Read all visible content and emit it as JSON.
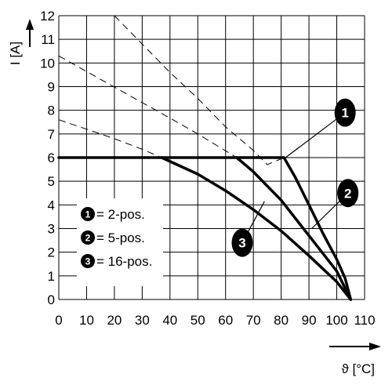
{
  "chart_data": {
    "type": "line",
    "xlabel": "ϑ [°C]",
    "ylabel": "I [A]",
    "xlim": [
      0,
      110
    ],
    "ylim": [
      0,
      12
    ],
    "xticks": [
      "0",
      "10",
      "20",
      "30",
      "40",
      "50",
      "60",
      "70",
      "80",
      "90",
      "100",
      "110"
    ],
    "yticks": [
      "0",
      "1",
      "2",
      "3",
      "4",
      "5",
      "6",
      "7",
      "8",
      "9",
      "10",
      "11",
      "12"
    ],
    "grid": true,
    "legend_position": "lower-left",
    "legend": [
      {
        "badge": "1",
        "label": "= 2-pos."
      },
      {
        "badge": "2",
        "label": "= 5-pos."
      },
      {
        "badge": "3",
        "label": "= 16-pos."
      }
    ],
    "series": [
      {
        "badge": "1",
        "plateau": 6,
        "solid": [
          [
            0,
            6
          ],
          [
            81,
            6
          ],
          [
            85,
            5.18
          ],
          [
            90,
            4.0
          ],
          [
            95,
            2.8
          ],
          [
            100,
            1.7
          ],
          [
            103,
            0.9
          ],
          [
            105,
            0
          ]
        ],
        "dashed": [
          [
            20,
            12
          ],
          [
            30,
            10.8
          ],
          [
            40,
            9.6
          ],
          [
            50,
            8.5
          ],
          [
            60,
            7.3
          ],
          [
            70,
            6.3
          ],
          [
            75,
            5.7
          ],
          [
            81,
            6
          ]
        ]
      },
      {
        "badge": "2",
        "plateau": 6,
        "solid": [
          [
            64,
            6
          ],
          [
            70,
            5.4
          ],
          [
            80,
            4.2
          ],
          [
            90,
            2.7
          ],
          [
            100,
            1.2
          ],
          [
            105,
            0
          ]
        ],
        "dashed": [
          [
            0,
            10.3
          ],
          [
            20,
            8.98
          ],
          [
            40,
            7.67
          ],
          [
            50,
            7.0
          ],
          [
            64,
            6
          ]
        ]
      },
      {
        "badge": "3",
        "plateau": 6,
        "solid": [
          [
            37,
            6
          ],
          [
            50,
            5.3
          ],
          [
            60,
            4.6
          ],
          [
            70,
            3.8
          ],
          [
            80,
            2.9
          ],
          [
            90,
            1.85
          ],
          [
            100,
            0.75
          ],
          [
            105,
            0
          ]
        ],
        "dashed": [
          [
            0,
            7.6
          ],
          [
            10,
            7.2
          ],
          [
            20,
            6.8
          ],
          [
            30,
            6.35
          ],
          [
            37,
            6
          ]
        ]
      }
    ],
    "callouts": [
      {
        "badge": "1",
        "badge_at": [
          103,
          7.9
        ],
        "pointer_to": [
          81,
          5.95
        ]
      },
      {
        "badge": "2",
        "badge_at": [
          104,
          4.5
        ],
        "pointer_to": [
          91,
          3.0
        ]
      },
      {
        "badge": "3",
        "badge_at": [
          66,
          2.4
        ],
        "pointer_to": [
          74,
          4.15
        ]
      }
    ]
  }
}
